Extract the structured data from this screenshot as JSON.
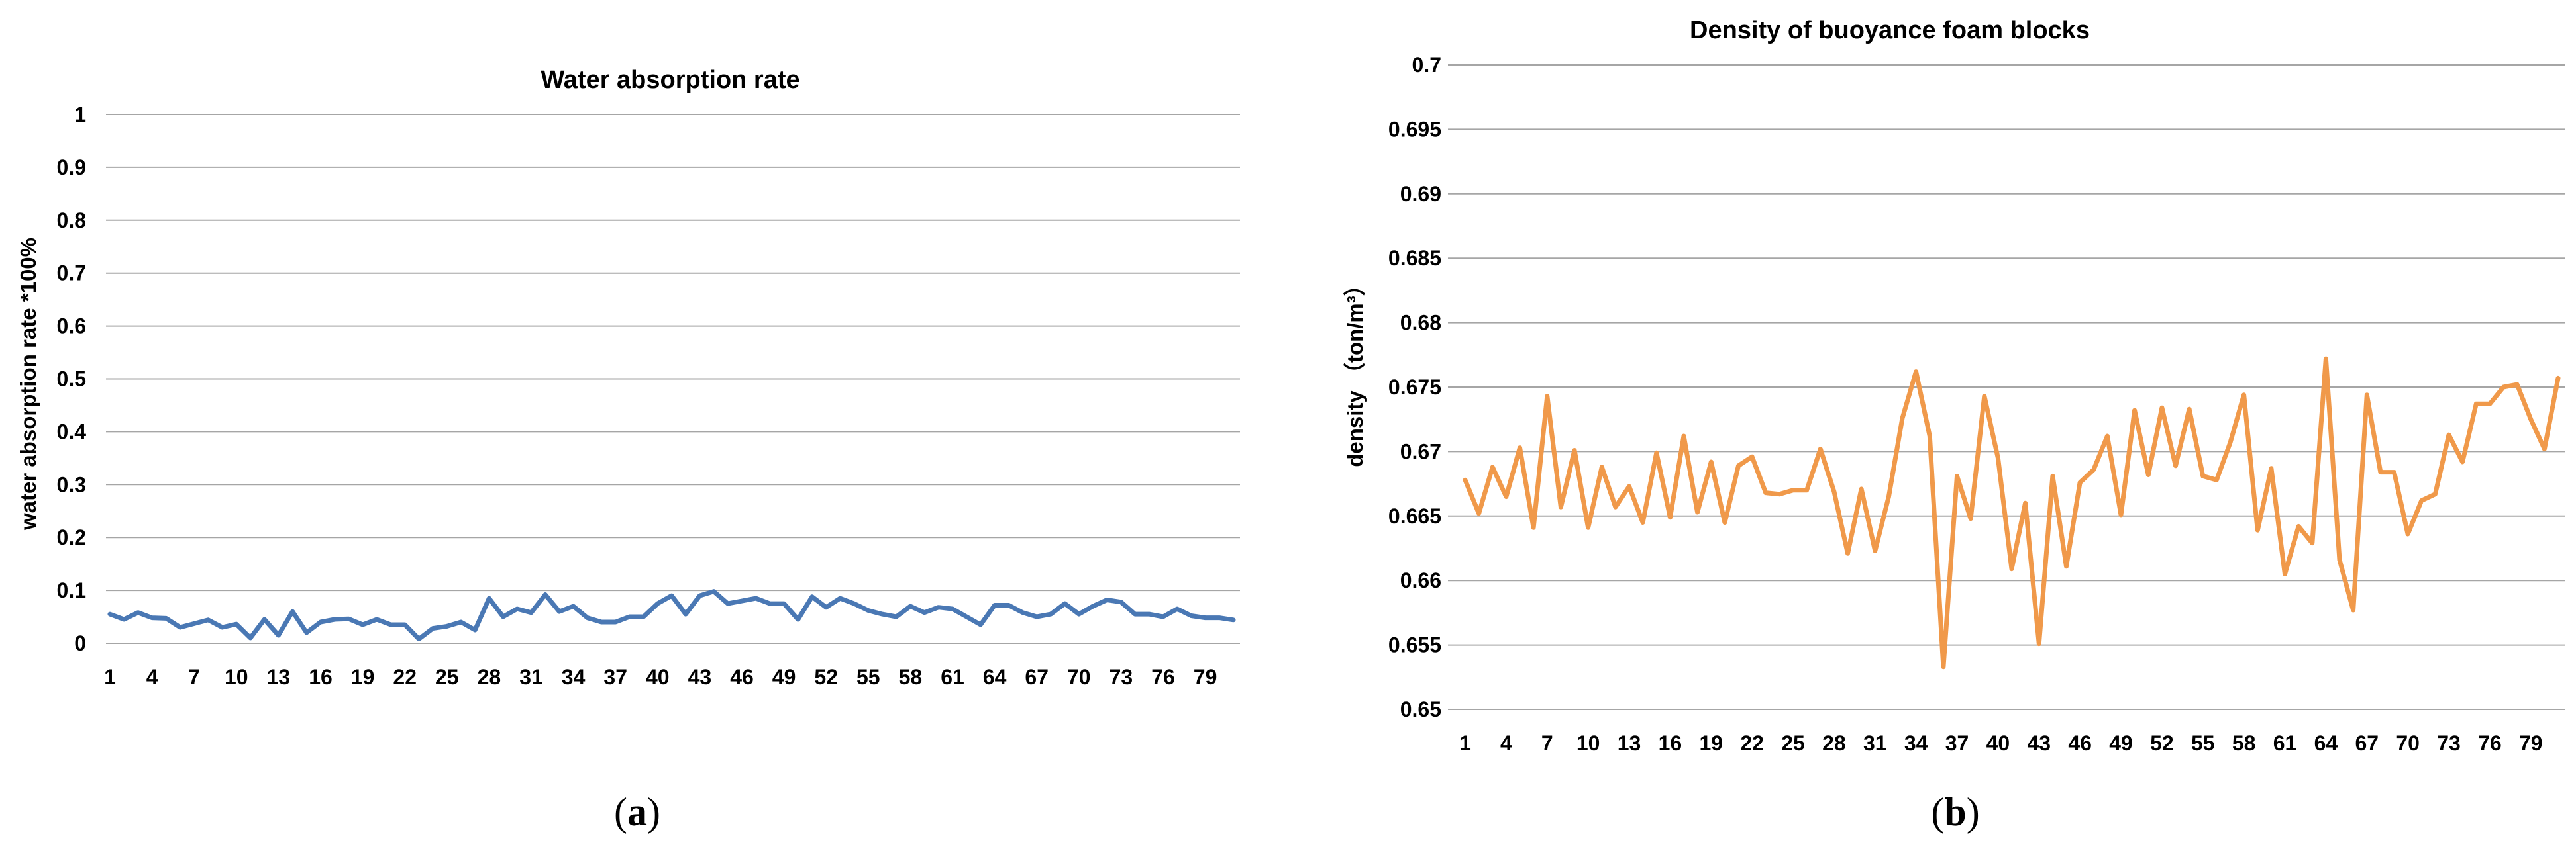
{
  "chart_data": [
    {
      "type": "line",
      "panel_label": "a",
      "title": "Water absorption rate",
      "xlabel": "",
      "ylabel": "water absorption rate *100%",
      "ylim": [
        0,
        1
      ],
      "yticks": [
        "0",
        "0.1",
        "0.2",
        "0.3",
        "0.4",
        "0.5",
        "0.6",
        "0.7",
        "0.8",
        "0.9",
        "1"
      ],
      "xticks": [
        "1",
        "4",
        "7",
        "10",
        "13",
        "16",
        "19",
        "22",
        "25",
        "28",
        "31",
        "34",
        "37",
        "40",
        "43",
        "46",
        "49",
        "52",
        "55",
        "58",
        "61",
        "64",
        "67",
        "70",
        "73",
        "76",
        "79"
      ],
      "grid": true,
      "legend": "none",
      "color": "#4a78b4",
      "series": [
        {
          "x": [
            1,
            2,
            3,
            4,
            5,
            6,
            7,
            8,
            9,
            10,
            11,
            12,
            13,
            14,
            15,
            16,
            17,
            18,
            19,
            20,
            21,
            22,
            23,
            24,
            25,
            26,
            27,
            28,
            29,
            30,
            31,
            32,
            33,
            34,
            35,
            36,
            37,
            38,
            39,
            40,
            41,
            42,
            43,
            44,
            45,
            46,
            47,
            48,
            49,
            50,
            51,
            52,
            53,
            54,
            55,
            56,
            57,
            58,
            59,
            60,
            61,
            62,
            63,
            64,
            65,
            66,
            67,
            68,
            69,
            70,
            71,
            72,
            73,
            74,
            75,
            76,
            77,
            78,
            79,
            80,
            81
          ],
          "values": [
            0.055,
            0.045,
            0.058,
            0.048,
            0.047,
            0.03,
            0.037,
            0.044,
            0.03,
            0.036,
            0.01,
            0.045,
            0.015,
            0.06,
            0.02,
            0.04,
            0.045,
            0.046,
            0.035,
            0.045,
            0.035,
            0.035,
            0.008,
            0.028,
            0.032,
            0.04,
            0.025,
            0.085,
            0.05,
            0.065,
            0.058,
            0.092,
            0.06,
            0.07,
            0.048,
            0.04,
            0.04,
            0.05,
            0.05,
            0.075,
            0.09,
            0.055,
            0.09,
            0.098,
            0.075,
            0.08,
            0.085,
            0.075,
            0.075,
            0.045,
            0.088,
            0.068,
            0.085,
            0.075,
            0.062,
            0.055,
            0.05,
            0.07,
            0.058,
            0.068,
            0.065,
            0.05,
            0.035,
            0.072,
            0.072,
            0.058,
            0.05,
            0.055,
            0.075,
            0.055,
            0.07,
            0.082,
            0.078,
            0.055,
            0.055,
            0.05,
            0.065,
            0.052,
            0.048,
            0.048,
            0.044
          ]
        }
      ]
    },
    {
      "type": "line",
      "panel_label": "b",
      "title": "Density of buoyance foam blocks",
      "xlabel": "",
      "ylabel": "density （ton/m³）",
      "ylim": [
        0.65,
        0.7
      ],
      "yticks": [
        "0.65",
        "0.655",
        "0.66",
        "0.665",
        "0.67",
        "0.675",
        "0.68",
        "0.685",
        "0.69",
        "0.695",
        "0.7"
      ],
      "xticks": [
        "1",
        "4",
        "7",
        "10",
        "13",
        "16",
        "19",
        "22",
        "25",
        "28",
        "31",
        "34",
        "37",
        "40",
        "43",
        "46",
        "49",
        "52",
        "55",
        "58",
        "61",
        "64",
        "67",
        "70",
        "73",
        "76",
        "79"
      ],
      "grid": true,
      "legend": "none",
      "color": "#f0994a",
      "series": [
        {
          "x": [
            1,
            2,
            3,
            4,
            5,
            6,
            7,
            8,
            9,
            10,
            11,
            12,
            13,
            14,
            15,
            16,
            17,
            18,
            19,
            20,
            21,
            22,
            23,
            24,
            25,
            26,
            27,
            28,
            29,
            30,
            31,
            32,
            33,
            34,
            35,
            36,
            37,
            38,
            39,
            40,
            41,
            42,
            43,
            44,
            45,
            46,
            47,
            48,
            49,
            50,
            51,
            52,
            53,
            54,
            55,
            56,
            57,
            58,
            59,
            60,
            61,
            62,
            63,
            64,
            65,
            66,
            67,
            68,
            69,
            70,
            71,
            72,
            73,
            74,
            75,
            76,
            77,
            78,
            79,
            80,
            81
          ],
          "values": [
            0.6678,
            0.6652,
            0.6688,
            0.6665,
            0.6703,
            0.6641,
            0.6743,
            0.6657,
            0.6701,
            0.6641,
            0.6688,
            0.6657,
            0.6673,
            0.6645,
            0.6699,
            0.6649,
            0.6712,
            0.6653,
            0.6692,
            0.6645,
            0.6689,
            0.6696,
            0.6668,
            0.6667,
            0.667,
            0.667,
            0.6702,
            0.6669,
            0.6621,
            0.6671,
            0.6623,
            0.6665,
            0.6726,
            0.6762,
            0.6712,
            0.6533,
            0.6681,
            0.6648,
            0.6743,
            0.6695,
            0.6609,
            0.666,
            0.6551,
            0.6681,
            0.6611,
            0.6676,
            0.6686,
            0.6712,
            0.6651,
            0.6732,
            0.6682,
            0.6734,
            0.6689,
            0.6733,
            0.6681,
            0.6678,
            0.6707,
            0.6744,
            0.6639,
            0.6687,
            0.6605,
            0.6642,
            0.6629,
            0.6772,
            0.6616,
            0.6577,
            0.6744,
            0.6684,
            0.6684,
            0.6636,
            0.6662,
            0.6667,
            0.6713,
            0.6692,
            0.6737,
            0.6737,
            0.675,
            0.6752,
            0.6725,
            0.6702,
            0.6757
          ]
        }
      ]
    }
  ]
}
